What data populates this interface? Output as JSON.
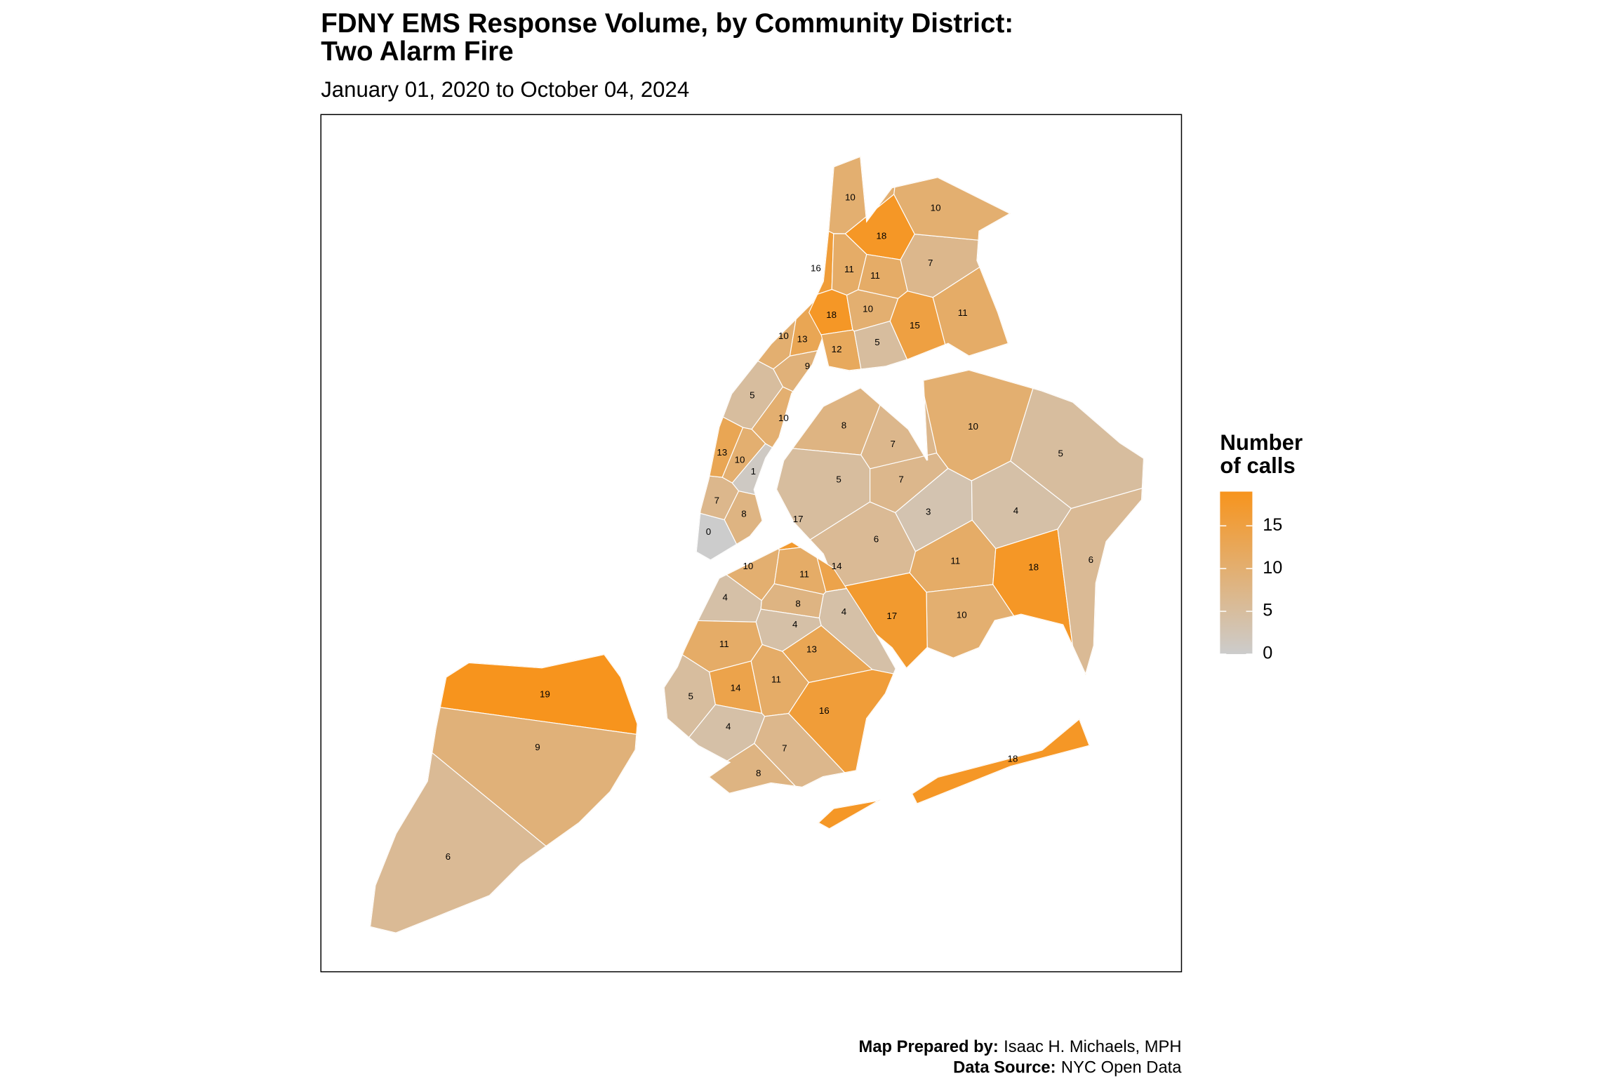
{
  "title_lines": [
    "FDNY EMS Response Volume, by Community District:",
    "Two Alarm Fire"
  ],
  "subtitle": "January 01, 2020 to October 04, 2024",
  "values": [
    0,
    7,
    8,
    13,
    10,
    1,
    5,
    10,
    10,
    13,
    9,
    10,
    18,
    16,
    11,
    11,
    18,
    10,
    12,
    5,
    15,
    7,
    10,
    11,
    8,
    7,
    5,
    7,
    3,
    6,
    10,
    5,
    4,
    11,
    18,
    6,
    10,
    17,
    18,
    17,
    10,
    11,
    14,
    4,
    8,
    4,
    4,
    11,
    13,
    14,
    11,
    5,
    4,
    16,
    7,
    8,
    19,
    9,
    6
  ],
  "legend": {
    "title_lines": [
      "Number",
      "of calls"
    ],
    "ticks": [
      0,
      5,
      10,
      15
    ],
    "lim": [
      0,
      19
    ],
    "low_color": "#cccccc",
    "high_color": "#f7941d"
  },
  "credits": [
    {
      "label": "Map Prepared by:",
      "text": "Isaac H. Michaels, MPH"
    },
    {
      "label": "Data Source:",
      "text": "NYC Open Data"
    }
  ]
}
